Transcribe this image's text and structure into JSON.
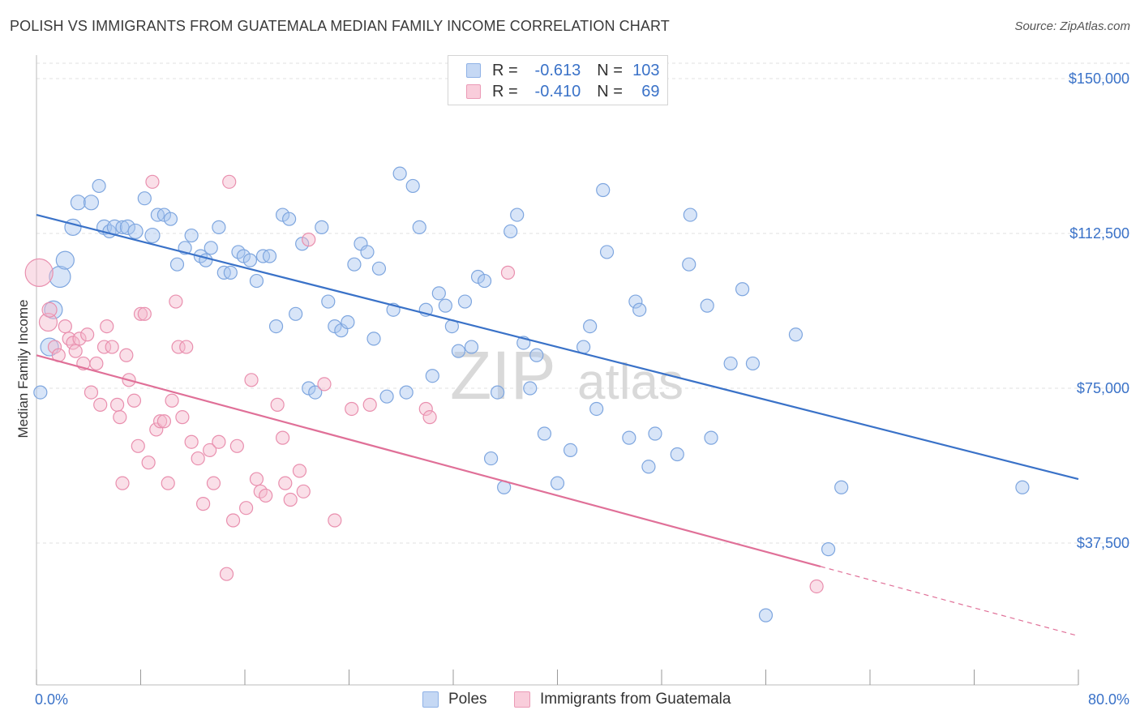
{
  "title": "POLISH VS IMMIGRANTS FROM GUATEMALA MEDIAN FAMILY INCOME CORRELATION CHART",
  "source": "Source: ZipAtlas.com",
  "watermark": {
    "zip": "ZIP",
    "atlas": "atlas"
  },
  "legend_top": [
    {
      "r_label": "R =",
      "r_value": "-0.613",
      "n_label": "N =",
      "n_value": "103"
    },
    {
      "r_label": "R =",
      "r_value": "-0.410",
      "n_label": "N =",
      "n_value": "69"
    }
  ],
  "legend_bottom": [
    "Poles",
    "Immigrants from Guatemala"
  ],
  "colors": {
    "blue": "#3a72c8",
    "blue_fill": "#a9c6ef",
    "pink": "#e07098",
    "pink_fill": "#f5b8cb",
    "grid": "#e2e2e2"
  },
  "chart_data": {
    "type": "scatter",
    "title": "POLISH VS IMMIGRANTS FROM GUATEMALA MEDIAN FAMILY INCOME CORRELATION CHART",
    "xlabel": "",
    "ylabel": "Median Family Income",
    "xlim": [
      0,
      80
    ],
    "ylim": [
      0,
      160000
    ],
    "x_tick_labels": [
      "0.0%",
      "80.0%"
    ],
    "y_ticks": [
      37500,
      75000,
      112500,
      150000
    ],
    "y_tick_labels": [
      "$37,500",
      "$75,000",
      "$112,500",
      "$150,000"
    ],
    "grid": true,
    "legend_placement": "top-center",
    "series": [
      {
        "name": "Poles",
        "trend": {
          "x": [
            0,
            80
          ],
          "y": [
            117000,
            53000
          ],
          "dashed_from": null
        },
        "points": [
          [
            0.3,
            74000,
            8
          ],
          [
            1,
            85000,
            11
          ],
          [
            1.3,
            94000,
            11
          ],
          [
            1.8,
            102000,
            13
          ],
          [
            2.2,
            106000,
            11
          ],
          [
            2.8,
            114000,
            10
          ],
          [
            3.2,
            120000,
            9
          ],
          [
            4.2,
            120000,
            9
          ],
          [
            4.8,
            124000,
            8
          ],
          [
            5.2,
            114000,
            9
          ],
          [
            5.6,
            113000,
            8
          ],
          [
            6.0,
            114000,
            9
          ],
          [
            6.6,
            114000,
            8
          ],
          [
            7.0,
            114000,
            9
          ],
          [
            7.6,
            113000,
            9
          ],
          [
            8.3,
            121000,
            8
          ],
          [
            8.9,
            112000,
            9
          ],
          [
            9.3,
            117000,
            8
          ],
          [
            9.8,
            117000,
            8
          ],
          [
            10.3,
            116000,
            8
          ],
          [
            10.8,
            105000,
            8
          ],
          [
            11.4,
            109000,
            8
          ],
          [
            11.9,
            112000,
            8
          ],
          [
            12.6,
            107000,
            8
          ],
          [
            13.0,
            106000,
            8
          ],
          [
            13.4,
            109000,
            8
          ],
          [
            14.0,
            114000,
            8
          ],
          [
            14.4,
            103000,
            8
          ],
          [
            14.9,
            103000,
            8
          ],
          [
            15.5,
            108000,
            8
          ],
          [
            15.9,
            107000,
            8
          ],
          [
            16.4,
            106000,
            8
          ],
          [
            16.9,
            101000,
            8
          ],
          [
            17.4,
            107000,
            8
          ],
          [
            17.9,
            107000,
            8
          ],
          [
            18.4,
            90000,
            8
          ],
          [
            18.9,
            117000,
            8
          ],
          [
            19.4,
            116000,
            8
          ],
          [
            19.9,
            93000,
            8
          ],
          [
            20.4,
            110000,
            8
          ],
          [
            20.9,
            75000,
            8
          ],
          [
            21.4,
            74000,
            8
          ],
          [
            21.9,
            114000,
            8
          ],
          [
            22.4,
            96000,
            8
          ],
          [
            22.9,
            90000,
            8
          ],
          [
            23.4,
            89000,
            8
          ],
          [
            23.9,
            91000,
            8
          ],
          [
            24.4,
            105000,
            8
          ],
          [
            24.9,
            110000,
            8
          ],
          [
            25.4,
            108000,
            8
          ],
          [
            25.9,
            87000,
            8
          ],
          [
            26.3,
            104000,
            8
          ],
          [
            26.9,
            73000,
            8
          ],
          [
            27.4,
            94000,
            8
          ],
          [
            27.9,
            127000,
            8
          ],
          [
            28.4,
            74000,
            8
          ],
          [
            28.9,
            124000,
            8
          ],
          [
            29.4,
            114000,
            8
          ],
          [
            29.9,
            94000,
            8
          ],
          [
            30.4,
            78000,
            8
          ],
          [
            30.9,
            98000,
            8
          ],
          [
            31.4,
            95000,
            8
          ],
          [
            31.9,
            90000,
            8
          ],
          [
            32.4,
            84000,
            8
          ],
          [
            32.9,
            96000,
            8
          ],
          [
            33.4,
            85000,
            8
          ],
          [
            33.9,
            102000,
            8
          ],
          [
            34.4,
            101000,
            8
          ],
          [
            34.9,
            58000,
            8
          ],
          [
            35.4,
            74000,
            8
          ],
          [
            35.9,
            51000,
            8
          ],
          [
            36.4,
            113000,
            8
          ],
          [
            36.9,
            117000,
            8
          ],
          [
            37.4,
            86000,
            8
          ],
          [
            37.9,
            75000,
            8
          ],
          [
            38.4,
            83000,
            8
          ],
          [
            39.0,
            64000,
            8
          ],
          [
            40.0,
            52000,
            8
          ],
          [
            41.0,
            60000,
            8
          ],
          [
            42.0,
            85000,
            8
          ],
          [
            42.5,
            90000,
            8
          ],
          [
            43.0,
            70000,
            8
          ],
          [
            43.5,
            123000,
            8
          ],
          [
            43.8,
            108000,
            8
          ],
          [
            45.5,
            63000,
            8
          ],
          [
            46.0,
            96000,
            8
          ],
          [
            46.3,
            94000,
            8
          ],
          [
            47.0,
            56000,
            8
          ],
          [
            47.5,
            64000,
            8
          ],
          [
            49.2,
            59000,
            8
          ],
          [
            50.2,
            117000,
            8
          ],
          [
            50.1,
            105000,
            8
          ],
          [
            51.5,
            95000,
            8
          ],
          [
            51.8,
            63000,
            8
          ],
          [
            53.3,
            81000,
            8
          ],
          [
            54.2,
            99000,
            8
          ],
          [
            55.0,
            81000,
            8
          ],
          [
            56.0,
            20000,
            8
          ],
          [
            58.3,
            88000,
            8
          ],
          [
            60.8,
            36000,
            8
          ],
          [
            61.8,
            51000,
            8
          ],
          [
            75.7,
            51000,
            8
          ]
        ]
      },
      {
        "name": "Immigrants from Guatemala",
        "trend": {
          "x": [
            0,
            80
          ],
          "y": [
            83000,
            15000
          ],
          "dashed_from": 60.2
        },
        "points": [
          [
            0.2,
            103000,
            17
          ],
          [
            0.9,
            91000,
            11
          ],
          [
            1.0,
            94000,
            9
          ],
          [
            1.4,
            85000,
            8
          ],
          [
            1.7,
            83000,
            8
          ],
          [
            2.2,
            90000,
            8
          ],
          [
            2.5,
            87000,
            8
          ],
          [
            2.8,
            86000,
            8
          ],
          [
            3.0,
            84000,
            8
          ],
          [
            3.3,
            87000,
            8
          ],
          [
            3.6,
            81000,
            8
          ],
          [
            3.9,
            88000,
            8
          ],
          [
            4.2,
            74000,
            8
          ],
          [
            4.6,
            81000,
            8
          ],
          [
            4.9,
            71000,
            8
          ],
          [
            5.2,
            85000,
            8
          ],
          [
            5.4,
            90000,
            8
          ],
          [
            5.8,
            85000,
            8
          ],
          [
            6.2,
            71000,
            8
          ],
          [
            6.4,
            68000,
            8
          ],
          [
            6.6,
            52000,
            8
          ],
          [
            6.9,
            83000,
            8
          ],
          [
            7.1,
            77000,
            8
          ],
          [
            7.5,
            72000,
            8
          ],
          [
            7.8,
            61000,
            8
          ],
          [
            8.0,
            93000,
            8
          ],
          [
            8.3,
            93000,
            8
          ],
          [
            8.6,
            57000,
            8
          ],
          [
            8.9,
            125000,
            8
          ],
          [
            9.2,
            65000,
            8
          ],
          [
            9.5,
            67000,
            8
          ],
          [
            9.8,
            67000,
            8
          ],
          [
            10.1,
            52000,
            8
          ],
          [
            10.4,
            72000,
            8
          ],
          [
            10.7,
            96000,
            8
          ],
          [
            10.9,
            85000,
            8
          ],
          [
            11.2,
            68000,
            8
          ],
          [
            11.5,
            85000,
            8
          ],
          [
            11.9,
            62000,
            8
          ],
          [
            12.4,
            58000,
            8
          ],
          [
            12.8,
            47000,
            8
          ],
          [
            13.3,
            60000,
            8
          ],
          [
            13.6,
            52000,
            8
          ],
          [
            14.0,
            62000,
            8
          ],
          [
            14.6,
            30000,
            8
          ],
          [
            14.8,
            125000,
            8
          ],
          [
            15.1,
            43000,
            8
          ],
          [
            15.4,
            61000,
            8
          ],
          [
            16.1,
            46000,
            8
          ],
          [
            16.5,
            77000,
            8
          ],
          [
            16.9,
            53000,
            8
          ],
          [
            17.2,
            50000,
            8
          ],
          [
            17.6,
            49000,
            8
          ],
          [
            18.5,
            71000,
            8
          ],
          [
            18.9,
            63000,
            8
          ],
          [
            19.1,
            52000,
            8
          ],
          [
            19.5,
            48000,
            8
          ],
          [
            20.2,
            55000,
            8
          ],
          [
            20.5,
            50000,
            8
          ],
          [
            20.9,
            111000,
            8
          ],
          [
            22.1,
            76000,
            8
          ],
          [
            22.9,
            43000,
            8
          ],
          [
            24.2,
            70000,
            8
          ],
          [
            25.6,
            71000,
            8
          ],
          [
            29.9,
            70000,
            8
          ],
          [
            30.2,
            68000,
            8
          ],
          [
            36.2,
            103000,
            8
          ],
          [
            59.9,
            27000,
            8
          ]
        ]
      }
    ]
  }
}
